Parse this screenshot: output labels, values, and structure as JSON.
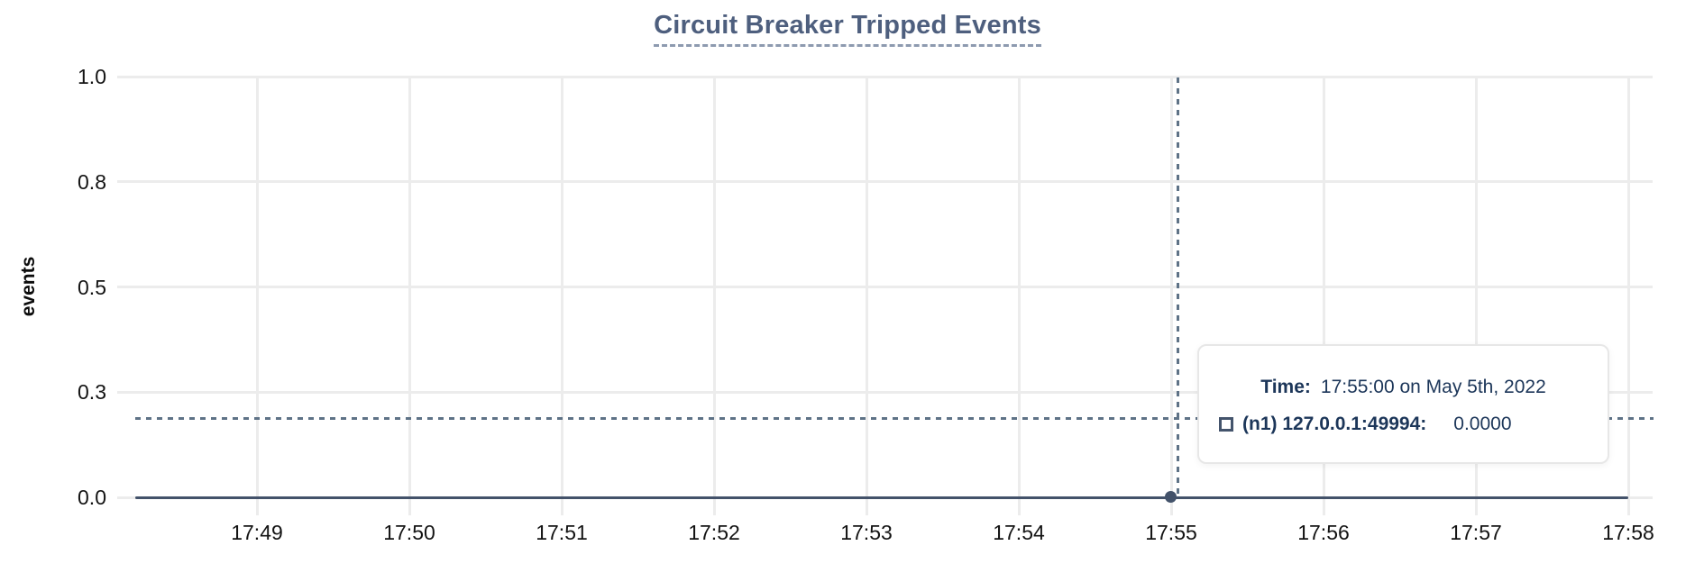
{
  "title": "Circuit Breaker Tripped Events",
  "y_axis_label": "events",
  "tooltip": {
    "time_label": "Time:",
    "time_value": "17:55:00 on May 5th, 2022",
    "series_label": "(n1) 127.0.0.1:49994:",
    "series_value": "0.0000",
    "marker_icon": "square-outline"
  },
  "colors": {
    "title": "#4e5f7e",
    "series_line": "#43526a",
    "crosshair": "#5e7286",
    "gridline": "#ececec",
    "tooltip_text": "#1c3659",
    "tick_label": "#131313"
  },
  "chart_data": {
    "type": "line",
    "title": "Circuit Breaker Tripped Events",
    "xlabel": "",
    "ylabel": "events",
    "ylim": [
      0,
      1
    ],
    "grid": true,
    "x_ticks": [
      "17:49",
      "17:50",
      "17:51",
      "17:52",
      "17:53",
      "17:54",
      "17:55",
      "17:56",
      "17:57",
      "17:58"
    ],
    "y_tick_labels": [
      "1.0",
      "0.8",
      "0.5",
      "0.3",
      "0.0"
    ],
    "y_tick_values": [
      1.0,
      0.75,
      0.5,
      0.25,
      0.0
    ],
    "series": [
      {
        "name": "(n1) 127.0.0.1:49994",
        "x": [
          "17:49",
          "17:50",
          "17:51",
          "17:52",
          "17:53",
          "17:54",
          "17:55",
          "17:56",
          "17:57",
          "17:58"
        ],
        "values": [
          0,
          0,
          0,
          0,
          0,
          0,
          0,
          0,
          0,
          0
        ]
      }
    ],
    "cursor": {
      "hovered_time": "17:55:00 on May 5th, 2022",
      "hovered_series": "(n1) 127.0.0.1:49994",
      "hovered_value": "0.0000"
    },
    "legend_position": "tooltip-overlay"
  }
}
